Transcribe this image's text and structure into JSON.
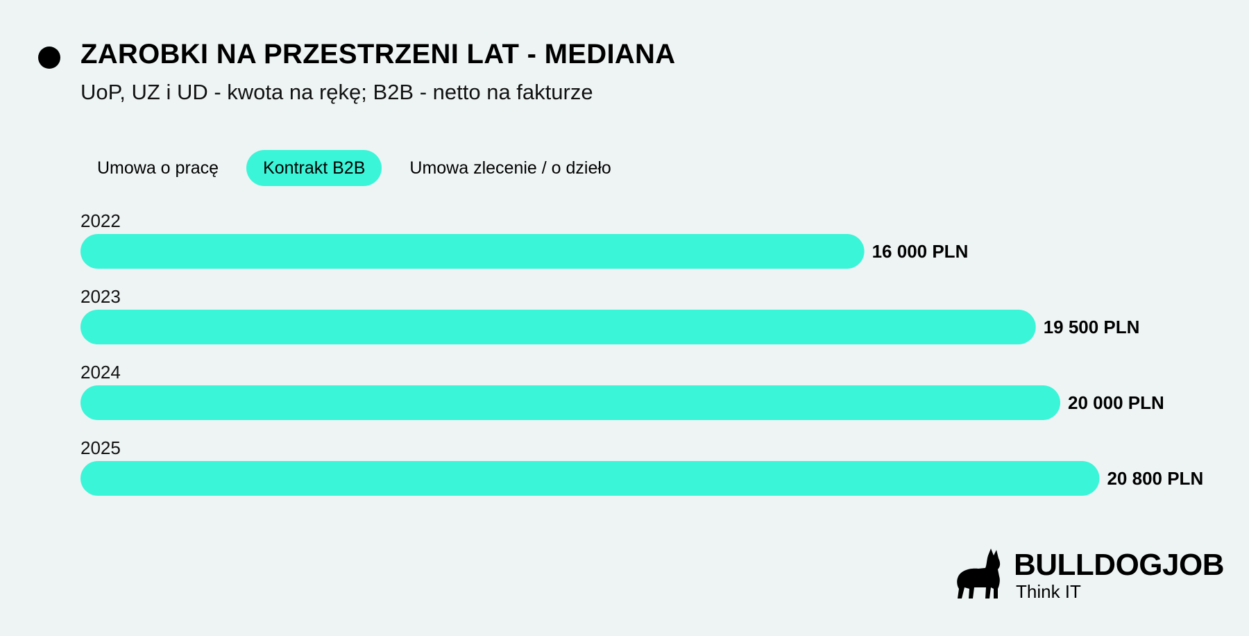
{
  "header": {
    "title": "ZAROBKI NA PRZESTRZENI LAT - MEDIANA",
    "subtitle": "UoP, UZ i UD - kwota na rękę; B2B - netto na fakturze"
  },
  "tabs": [
    {
      "label": "Umowa o pracę",
      "active": false
    },
    {
      "label": "Kontrakt B2B",
      "active": true
    },
    {
      "label": "Umowa zlecenie / o dzieło",
      "active": false
    }
  ],
  "chart_data": {
    "type": "bar",
    "orientation": "horizontal",
    "categories": [
      "2022",
      "2023",
      "2024",
      "2025"
    ],
    "values": [
      16000,
      19500,
      20000,
      20800
    ],
    "value_labels": [
      "16 000 PLN",
      "19 500 PLN",
      "20 000 PLN",
      "20 800 PLN"
    ],
    "unit": "PLN",
    "title": "ZAROBKI NA PRZESTRZENI LAT - MEDIANA",
    "grid": false,
    "bar_color": "#3af5d8"
  },
  "logo": {
    "wordmark": "BULLDOGJOB",
    "tagline": "Think IT",
    "icon": "bulldog-icon"
  },
  "colors": {
    "accent": "#3af5d8",
    "background": "#eef4f4",
    "text": "#000000"
  }
}
